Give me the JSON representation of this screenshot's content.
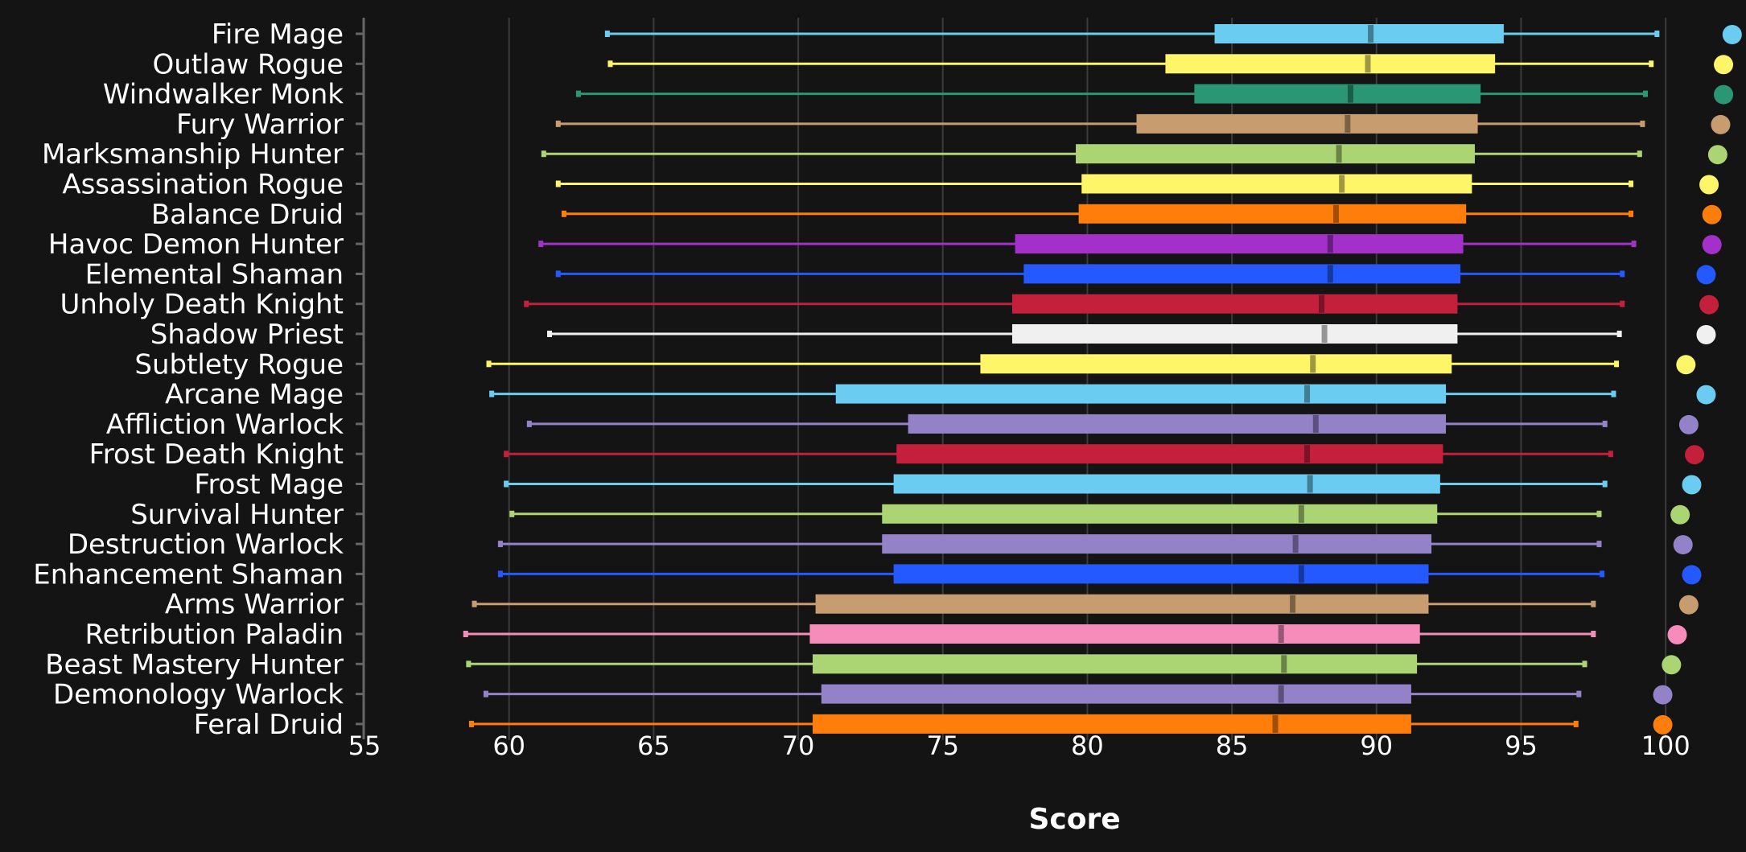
{
  "chart_data": {
    "type": "boxplot",
    "xlabel": "Score",
    "xlim": [
      55,
      102.5
    ],
    "xticks": [
      55,
      60,
      65,
      70,
      75,
      80,
      85,
      90,
      95,
      100
    ],
    "grid": "vertical",
    "stats_order": [
      "min",
      "q1",
      "median",
      "q3",
      "max",
      "dot"
    ],
    "series": [
      {
        "name": "Fire Mage",
        "color": "#69ccf0",
        "stats": [
          63.4,
          84.4,
          89.8,
          94.4,
          99.7,
          102.3
        ]
      },
      {
        "name": "Outlaw Rogue",
        "color": "#fff569",
        "stats": [
          63.5,
          82.7,
          89.7,
          94.1,
          99.5,
          102.0
        ]
      },
      {
        "name": "Windwalker Monk",
        "color": "#2a9673",
        "stats": [
          62.4,
          83.7,
          89.1,
          93.6,
          99.3,
          102.0
        ]
      },
      {
        "name": "Fury Warrior",
        "color": "#c79c6e",
        "stats": [
          61.7,
          81.7,
          89.0,
          93.5,
          99.2,
          101.9
        ]
      },
      {
        "name": "Marksmanship Hunter",
        "color": "#abd473",
        "stats": [
          61.2,
          79.6,
          88.7,
          93.4,
          99.1,
          101.8
        ]
      },
      {
        "name": "Assassination Rogue",
        "color": "#fff569",
        "stats": [
          61.7,
          79.8,
          88.8,
          93.3,
          98.8,
          101.5
        ]
      },
      {
        "name": "Balance Druid",
        "color": "#ff7d0a",
        "stats": [
          61.9,
          79.7,
          88.6,
          93.1,
          98.8,
          101.6
        ]
      },
      {
        "name": "Havoc Demon Hunter",
        "color": "#a330c9",
        "stats": [
          61.1,
          77.5,
          88.4,
          93.0,
          98.9,
          101.6
        ]
      },
      {
        "name": "Elemental Shaman",
        "color": "#2459ff",
        "stats": [
          61.7,
          77.8,
          88.4,
          92.9,
          98.5,
          101.4
        ]
      },
      {
        "name": "Unholy Death Knight",
        "color": "#c41f3b",
        "stats": [
          60.6,
          77.4,
          88.1,
          92.8,
          98.5,
          101.5
        ]
      },
      {
        "name": "Shadow Priest",
        "color": "#f0f0f0",
        "stats": [
          61.4,
          77.4,
          88.2,
          92.8,
          98.4,
          101.4
        ]
      },
      {
        "name": "Subtlety Rogue",
        "color": "#fff569",
        "stats": [
          59.3,
          76.3,
          87.8,
          92.6,
          98.3,
          100.7
        ]
      },
      {
        "name": "Arcane Mage",
        "color": "#69ccf0",
        "stats": [
          59.4,
          71.3,
          87.6,
          92.4,
          98.2,
          101.4
        ]
      },
      {
        "name": "Affliction Warlock",
        "color": "#9482c9",
        "stats": [
          60.7,
          73.8,
          87.9,
          92.4,
          97.9,
          100.8
        ]
      },
      {
        "name": "Frost Death Knight",
        "color": "#c41f3b",
        "stats": [
          59.9,
          73.4,
          87.6,
          92.3,
          98.1,
          101.0
        ]
      },
      {
        "name": "Frost Mage",
        "color": "#69ccf0",
        "stats": [
          59.9,
          73.3,
          87.7,
          92.2,
          97.9,
          100.9
        ]
      },
      {
        "name": "Survival Hunter",
        "color": "#abd473",
        "stats": [
          60.1,
          72.9,
          87.4,
          92.1,
          97.7,
          100.5
        ]
      },
      {
        "name": "Destruction Warlock",
        "color": "#9482c9",
        "stats": [
          59.7,
          72.9,
          87.2,
          91.9,
          97.7,
          100.6
        ]
      },
      {
        "name": "Enhancement Shaman",
        "color": "#2459ff",
        "stats": [
          59.7,
          73.3,
          87.4,
          91.8,
          97.8,
          100.9
        ]
      },
      {
        "name": "Arms Warrior",
        "color": "#c79c6e",
        "stats": [
          58.8,
          70.6,
          87.1,
          91.8,
          97.5,
          100.8
        ]
      },
      {
        "name": "Retribution Paladin",
        "color": "#f58cba",
        "stats": [
          58.5,
          70.4,
          86.7,
          91.5,
          97.5,
          100.4
        ]
      },
      {
        "name": "Beast Mastery Hunter",
        "color": "#abd473",
        "stats": [
          58.6,
          70.5,
          86.8,
          91.4,
          97.2,
          100.2
        ]
      },
      {
        "name": "Demonology Warlock",
        "color": "#9482c9",
        "stats": [
          59.2,
          70.8,
          86.7,
          91.2,
          97.0,
          99.9
        ]
      },
      {
        "name": "Feral Druid",
        "color": "#ff7d0a",
        "stats": [
          58.7,
          70.5,
          86.5,
          91.2,
          96.9,
          99.9
        ]
      }
    ]
  }
}
